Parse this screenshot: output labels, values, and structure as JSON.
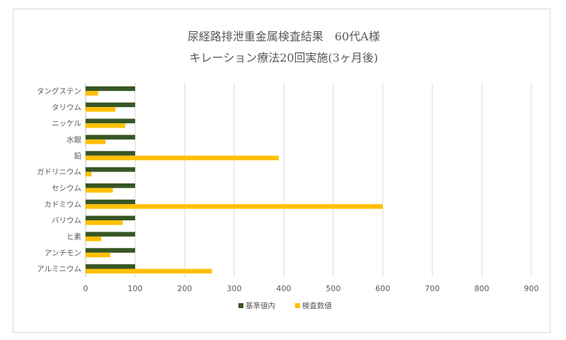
{
  "chart_data": {
    "type": "bar",
    "orientation": "horizontal",
    "title": "尿経路排泄重金属検査結果　60代A様",
    "subtitle": "キレーション療法20回実施(3ヶ月後)",
    "categories": [
      "タングステン",
      "タリウム",
      "ニッケル",
      "水銀",
      "鉛",
      "ガドリニウム",
      "セシウム",
      "カドミウム",
      "バリウム",
      "ヒ素",
      "アンチモン",
      "アルミニウム"
    ],
    "series": [
      {
        "name": "基準値内",
        "color": "#375623",
        "values": [
          100,
          100,
          100,
          100,
          100,
          100,
          100,
          100,
          100,
          100,
          100,
          100
        ]
      },
      {
        "name": "検査数値",
        "color": "#ffc000",
        "values": [
          25,
          60,
          80,
          40,
          390,
          12,
          55,
          600,
          75,
          32,
          50,
          255
        ]
      }
    ],
    "xlim": [
      0,
      900
    ],
    "x_ticks": [
      "0",
      "100",
      "200",
      "300",
      "400",
      "500",
      "600",
      "700",
      "800",
      "900"
    ],
    "x_tick_values": [
      0,
      100,
      200,
      300,
      400,
      500,
      600,
      700,
      800,
      900
    ],
    "grid": true,
    "grid_color": "#d9d9d9",
    "legend_position": "bottom",
    "xlabel": "",
    "ylabel": ""
  }
}
